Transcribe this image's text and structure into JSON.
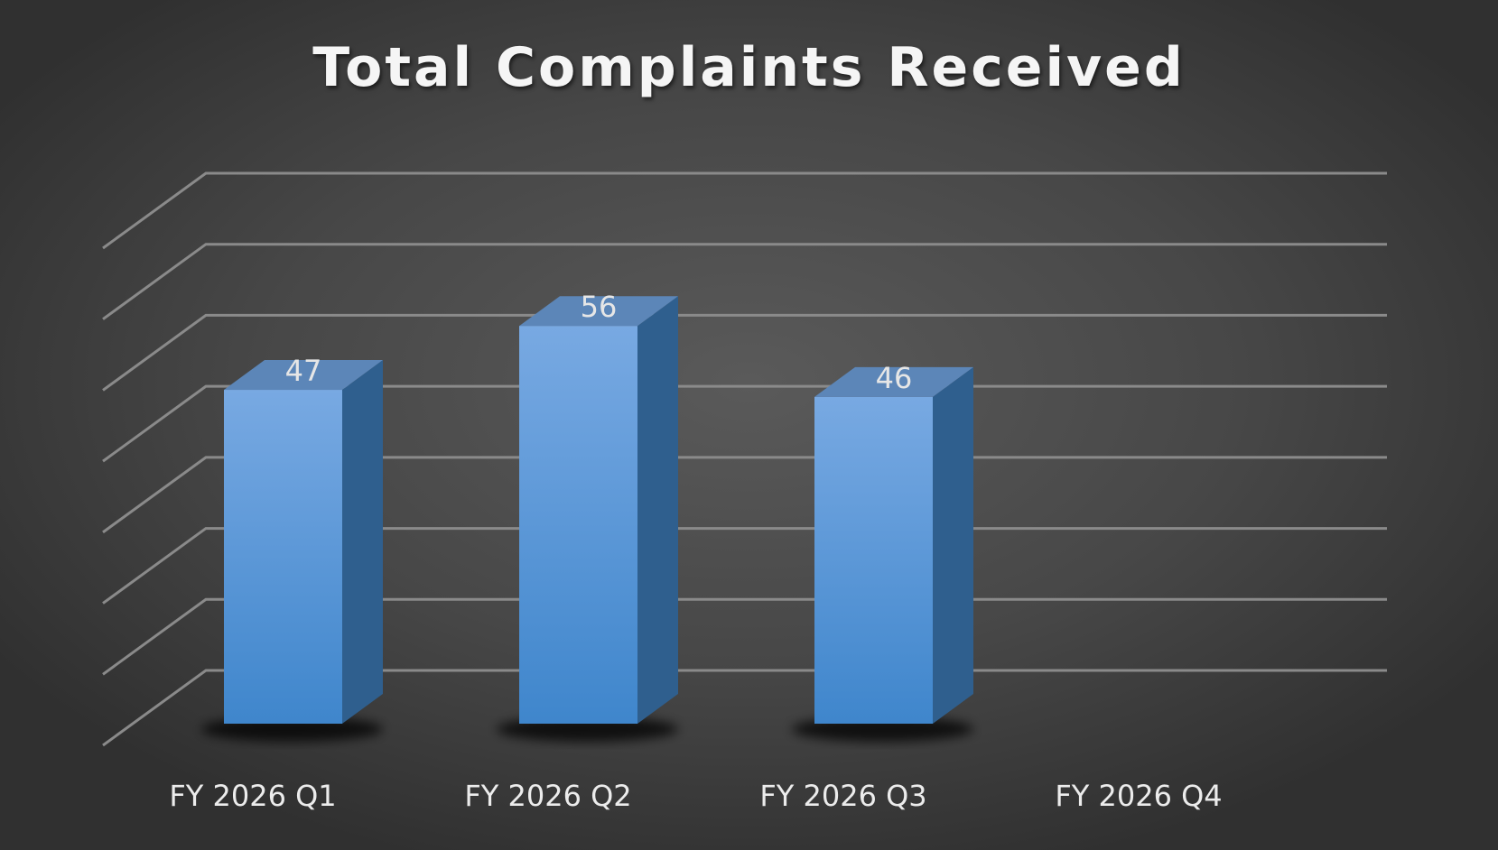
{
  "chart_data": {
    "type": "bar",
    "title": "Total Complaints Received",
    "xlabel": "",
    "ylabel": "",
    "categories": [
      "FY 2026 Q1",
      "FY 2026 Q2",
      "FY 2026 Q3",
      "FY 2026 Q4"
    ],
    "values": [
      47,
      56,
      46,
      null
    ],
    "data_labels": [
      "47",
      "56",
      "46",
      ""
    ],
    "ylim": [
      0,
      70
    ],
    "gridlines": [
      0,
      10,
      20,
      30,
      40,
      50,
      60,
      70
    ],
    "grid": true,
    "three_d": true,
    "colors": {
      "bar_front_top": "#78a9e2",
      "bar_front_bottom": "#3f86cc",
      "bar_side": "#2f5f8e",
      "bar_top": "#5c86b8",
      "grid": "#8a8a8a",
      "text": "#ececec"
    }
  }
}
